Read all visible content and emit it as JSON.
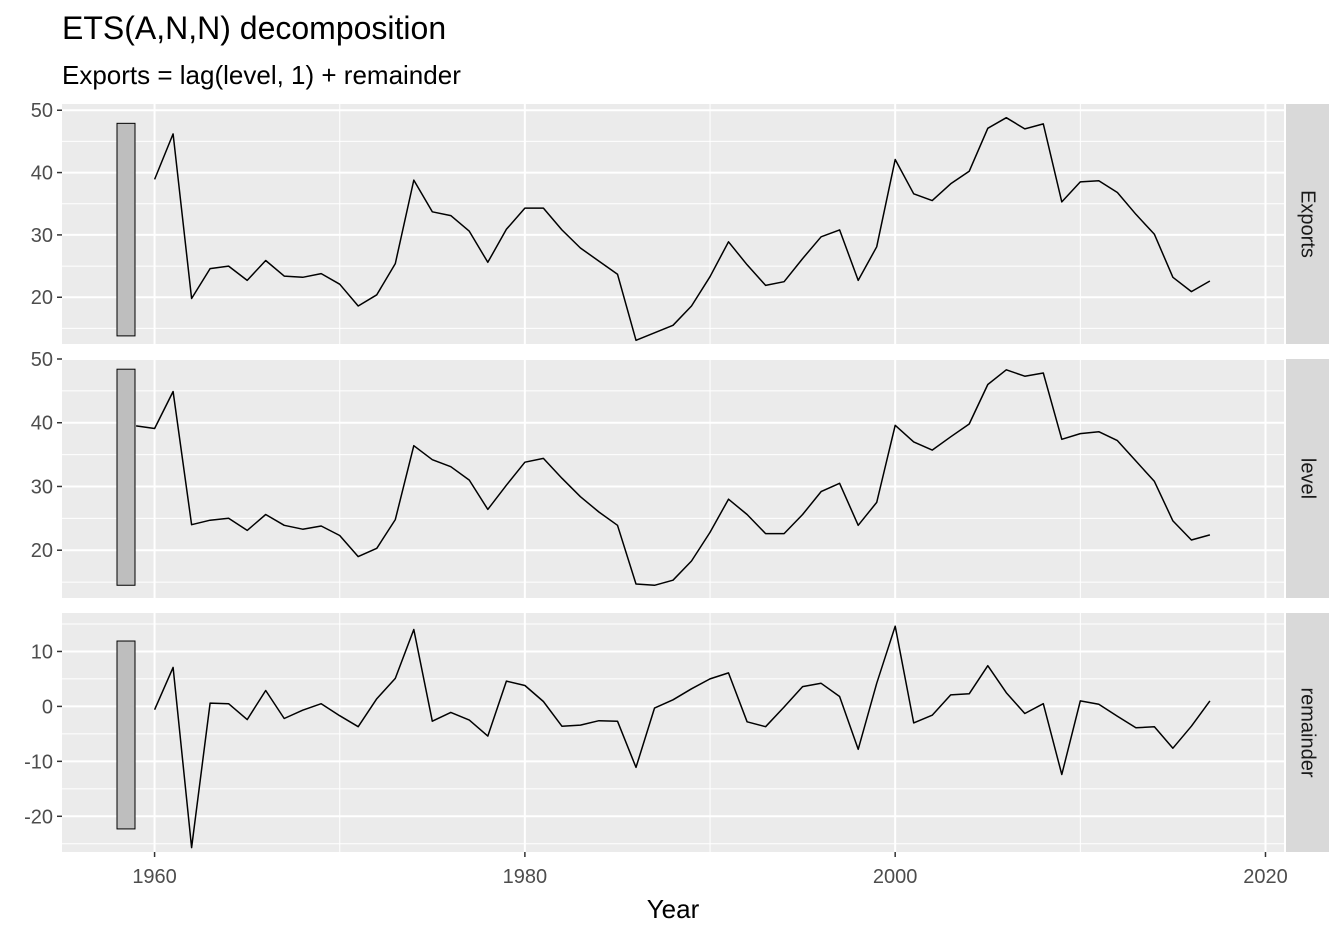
{
  "title": "ETS(A,N,N) decomposition",
  "subtitle": "Exports = lag(level, 1) + remainder",
  "chart_data": {
    "type": "line",
    "xlabel": "Year",
    "xlim": [
      1955,
      2021
    ],
    "x_ticks": [
      "1960",
      "1980",
      "2000",
      "2020"
    ],
    "grid": true,
    "panels": [
      {
        "name": "Exports",
        "ylim": [
          12.5,
          51
        ],
        "y_ticks": [
          "20",
          "30",
          "40",
          "50"
        ],
        "scale_bar": [
          13.8,
          47.9
        ],
        "x": [
          1960,
          1961,
          1962,
          1963,
          1964,
          1965,
          1966,
          1967,
          1968,
          1969,
          1970,
          1971,
          1972,
          1973,
          1974,
          1975,
          1976,
          1977,
          1978,
          1979,
          1980,
          1981,
          1982,
          1983,
          1984,
          1985,
          1986,
          1987,
          1988,
          1989,
          1990,
          1991,
          1992,
          1993,
          1994,
          1995,
          1996,
          1997,
          1998,
          1999,
          2000,
          2001,
          2002,
          2003,
          2004,
          2005,
          2006,
          2007,
          2008,
          2009,
          2010,
          2011,
          2012,
          2013,
          2014,
          2015,
          2016,
          2017
        ],
        "values": [
          38.9,
          46.2,
          19.8,
          24.6,
          25.0,
          22.7,
          25.9,
          23.4,
          23.2,
          23.8,
          22.1,
          18.6,
          20.4,
          25.4,
          38.8,
          33.7,
          33.1,
          30.6,
          25.6,
          30.9,
          34.3,
          34.3,
          30.8,
          27.9,
          25.8,
          23.7,
          13.1,
          14.3,
          15.5,
          18.6,
          23.3,
          28.9,
          25.2,
          21.9,
          22.5,
          26.2,
          29.7,
          30.8,
          22.7,
          28.1,
          42.1,
          36.6,
          35.5,
          38.2,
          40.2,
          47.1,
          48.8,
          47.0,
          47.8,
          35.3,
          38.5,
          38.7,
          36.8,
          33.3,
          30.1,
          23.2,
          20.9,
          22.6
        ]
      },
      {
        "name": "level",
        "ylim": [
          12.5,
          50
        ],
        "y_ticks": [
          "20",
          "30",
          "40",
          "50"
        ],
        "scale_bar": [
          14.5,
          48.4
        ],
        "x": [
          1959,
          1960,
          1961,
          1962,
          1963,
          1964,
          1965,
          1966,
          1967,
          1968,
          1969,
          1970,
          1971,
          1972,
          1973,
          1974,
          1975,
          1976,
          1977,
          1978,
          1979,
          1980,
          1981,
          1982,
          1983,
          1984,
          1985,
          1986,
          1987,
          1988,
          1989,
          1990,
          1991,
          1992,
          1993,
          1994,
          1995,
          1996,
          1997,
          1998,
          1999,
          2000,
          2001,
          2002,
          2003,
          2004,
          2005,
          2006,
          2007,
          2008,
          2009,
          2010,
          2011,
          2012,
          2013,
          2014,
          2015,
          2016,
          2017
        ],
        "values": [
          39.5,
          39.1,
          44.9,
          24.0,
          24.7,
          25.0,
          23.1,
          25.6,
          23.9,
          23.3,
          23.8,
          22.3,
          19.0,
          20.3,
          24.8,
          36.4,
          34.2,
          33.1,
          31.0,
          26.4,
          30.2,
          33.8,
          34.4,
          31.3,
          28.4,
          26.0,
          23.9,
          14.7,
          14.5,
          15.3,
          18.3,
          22.8,
          28.0,
          25.6,
          22.6,
          22.6,
          25.6,
          29.2,
          30.5,
          23.9,
          27.5,
          39.6,
          37.0,
          35.7,
          37.8,
          39.8,
          46.0,
          48.3,
          47.3,
          47.8,
          37.4,
          38.3,
          38.6,
          37.2,
          34.0,
          30.8,
          24.6,
          21.6,
          22.4
        ]
      },
      {
        "name": "remainder",
        "ylim": [
          -26.5,
          17
        ],
        "y_ticks": [
          "10",
          "0",
          "-10",
          "-20"
        ],
        "scale_bar": [
          -22.3,
          11.9
        ],
        "x": [
          1960,
          1961,
          1962,
          1963,
          1964,
          1965,
          1966,
          1967,
          1968,
          1969,
          1970,
          1971,
          1972,
          1973,
          1974,
          1975,
          1976,
          1977,
          1978,
          1979,
          1980,
          1981,
          1982,
          1983,
          1984,
          1985,
          1986,
          1987,
          1988,
          1989,
          1990,
          1991,
          1992,
          1993,
          1994,
          1995,
          1996,
          1997,
          1998,
          1999,
          2000,
          2001,
          2002,
          2003,
          2004,
          2005,
          2006,
          2007,
          2008,
          2009,
          2010,
          2011,
          2012,
          2013,
          2014,
          2015,
          2016,
          2017
        ],
        "values": [
          -0.6,
          7.1,
          -25.7,
          0.6,
          0.5,
          -2.4,
          2.9,
          -2.2,
          -0.7,
          0.5,
          -1.7,
          -3.7,
          1.4,
          5.1,
          14.0,
          -2.7,
          -1.1,
          -2.5,
          -5.4,
          4.6,
          3.8,
          0.9,
          -3.6,
          -3.4,
          -2.6,
          -2.7,
          -11.1,
          -0.3,
          1.2,
          3.2,
          5.0,
          6.1,
          -2.8,
          -3.7,
          -0.1,
          3.6,
          4.2,
          1.8,
          -7.8,
          4.2,
          14.6,
          -3.0,
          -1.6,
          2.1,
          2.3,
          7.4,
          2.5,
          -1.3,
          0.5,
          -12.4,
          1.0,
          0.4,
          -1.8,
          -3.9,
          -3.7,
          -7.6,
          -3.6,
          1.0
        ]
      }
    ]
  }
}
